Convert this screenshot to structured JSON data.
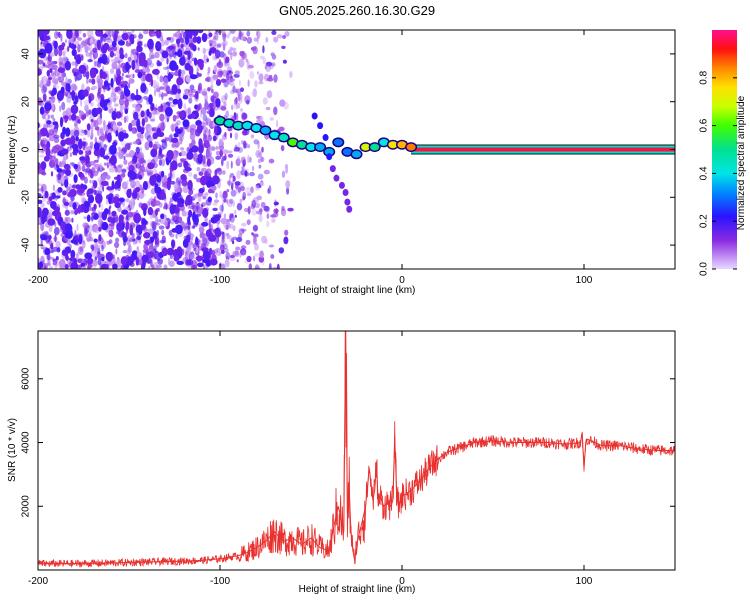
{
  "figure": {
    "title": "GN05.2025.260.16.30.G29"
  },
  "colors": {
    "line": "#e8312f",
    "axis": "#000000",
    "background": "#ffffff"
  },
  "chart_data": [
    {
      "type": "heatmap",
      "xlabel": "Height of straight line (km)",
      "ylabel": "Frequency (Hz)",
      "xlim": [
        -200,
        150
      ],
      "ylim": [
        -50,
        50
      ],
      "xticks": [
        -200,
        -100,
        0,
        100
      ],
      "yticks": [
        -40,
        -20,
        0,
        20,
        40
      ],
      "colorbar": {
        "label": "Normalized spectral amplitude",
        "range": [
          0,
          1
        ],
        "ticks": [
          "0.0",
          "0.2",
          "0.4",
          "0.6",
          "0.8"
        ],
        "tick_values": [
          0.0,
          0.2,
          0.4,
          0.6,
          0.8
        ]
      },
      "signal_track": [
        {
          "x": -100,
          "y": 12,
          "amp": 0.5
        },
        {
          "x": -95,
          "y": 11,
          "amp": 0.45
        },
        {
          "x": -90,
          "y": 10,
          "amp": 0.45
        },
        {
          "x": -85,
          "y": 10,
          "amp": 0.4
        },
        {
          "x": -80,
          "y": 9,
          "amp": 0.4
        },
        {
          "x": -75,
          "y": 8,
          "amp": 0.35
        },
        {
          "x": -70,
          "y": 6,
          "amp": 0.4
        },
        {
          "x": -65,
          "y": 5,
          "amp": 0.45
        },
        {
          "x": -60,
          "y": 3,
          "amp": 0.6
        },
        {
          "x": -55,
          "y": 2,
          "amp": 0.5
        },
        {
          "x": -50,
          "y": 1,
          "amp": 0.4
        },
        {
          "x": -45,
          "y": 1,
          "amp": 0.35
        },
        {
          "x": -40,
          "y": -1,
          "amp": 0.35
        },
        {
          "x": -35,
          "y": 3,
          "amp": 0.3
        },
        {
          "x": -30,
          "y": -1,
          "amp": 0.3
        },
        {
          "x": -25,
          "y": -2,
          "amp": 0.35
        },
        {
          "x": -20,
          "y": 1,
          "amp": 0.7
        },
        {
          "x": -15,
          "y": 1,
          "amp": 0.5
        },
        {
          "x": -10,
          "y": 3,
          "amp": 0.4
        },
        {
          "x": -5,
          "y": 2,
          "amp": 0.75
        },
        {
          "x": 0,
          "y": 2,
          "amp": 0.8
        },
        {
          "x": 5,
          "y": 1,
          "amp": 0.85
        }
      ],
      "carrier_line": {
        "x_start": 5,
        "x_end": 150,
        "y": 0,
        "amp": 0.95
      }
    },
    {
      "type": "line",
      "xlabel": "Height of straight line (km)",
      "ylabel": "SNR (10 * v/v)",
      "xlim": [
        -200,
        150
      ],
      "ylim": [
        0,
        7500
      ],
      "xticks": [
        -200,
        -100,
        0,
        100
      ],
      "yticks": [
        2000,
        4000,
        6000
      ],
      "series": [
        {
          "name": "SNR",
          "x": [
            -200,
            -180,
            -160,
            -140,
            -120,
            -110,
            -100,
            -95,
            -90,
            -85,
            -80,
            -75,
            -70,
            -65,
            -60,
            -55,
            -50,
            -45,
            -40,
            -37,
            -35,
            -32,
            -31,
            -30,
            -29,
            -28,
            -27,
            -26,
            -25,
            -22,
            -20,
            -18,
            -16,
            -15,
            -14,
            -13,
            -12,
            -10,
            -8,
            -6,
            -5,
            -4,
            -3,
            -2,
            0,
            5,
            10,
            15,
            20,
            25,
            30,
            40,
            50,
            60,
            70,
            80,
            90,
            98,
            99,
            100,
            101,
            102,
            110,
            120,
            130,
            140,
            150
          ],
          "y": [
            200,
            200,
            220,
            250,
            280,
            300,
            350,
            400,
            450,
            550,
            700,
            900,
            1200,
            900,
            1000,
            800,
            1000,
            700,
            600,
            1500,
            2000,
            1200,
            7500,
            1800,
            2500,
            1200,
            600,
            300,
            800,
            1500,
            2000,
            3200,
            2200,
            2500,
            3400,
            2000,
            2300,
            2000,
            2100,
            2000,
            2200,
            4200,
            2500,
            2000,
            2300,
            2500,
            2800,
            3200,
            3500,
            3700,
            3800,
            4000,
            4050,
            4000,
            4000,
            4000,
            3950,
            4000,
            4300,
            3200,
            4000,
            4100,
            3900,
            3900,
            3800,
            3750,
            3750
          ]
        }
      ]
    }
  ]
}
